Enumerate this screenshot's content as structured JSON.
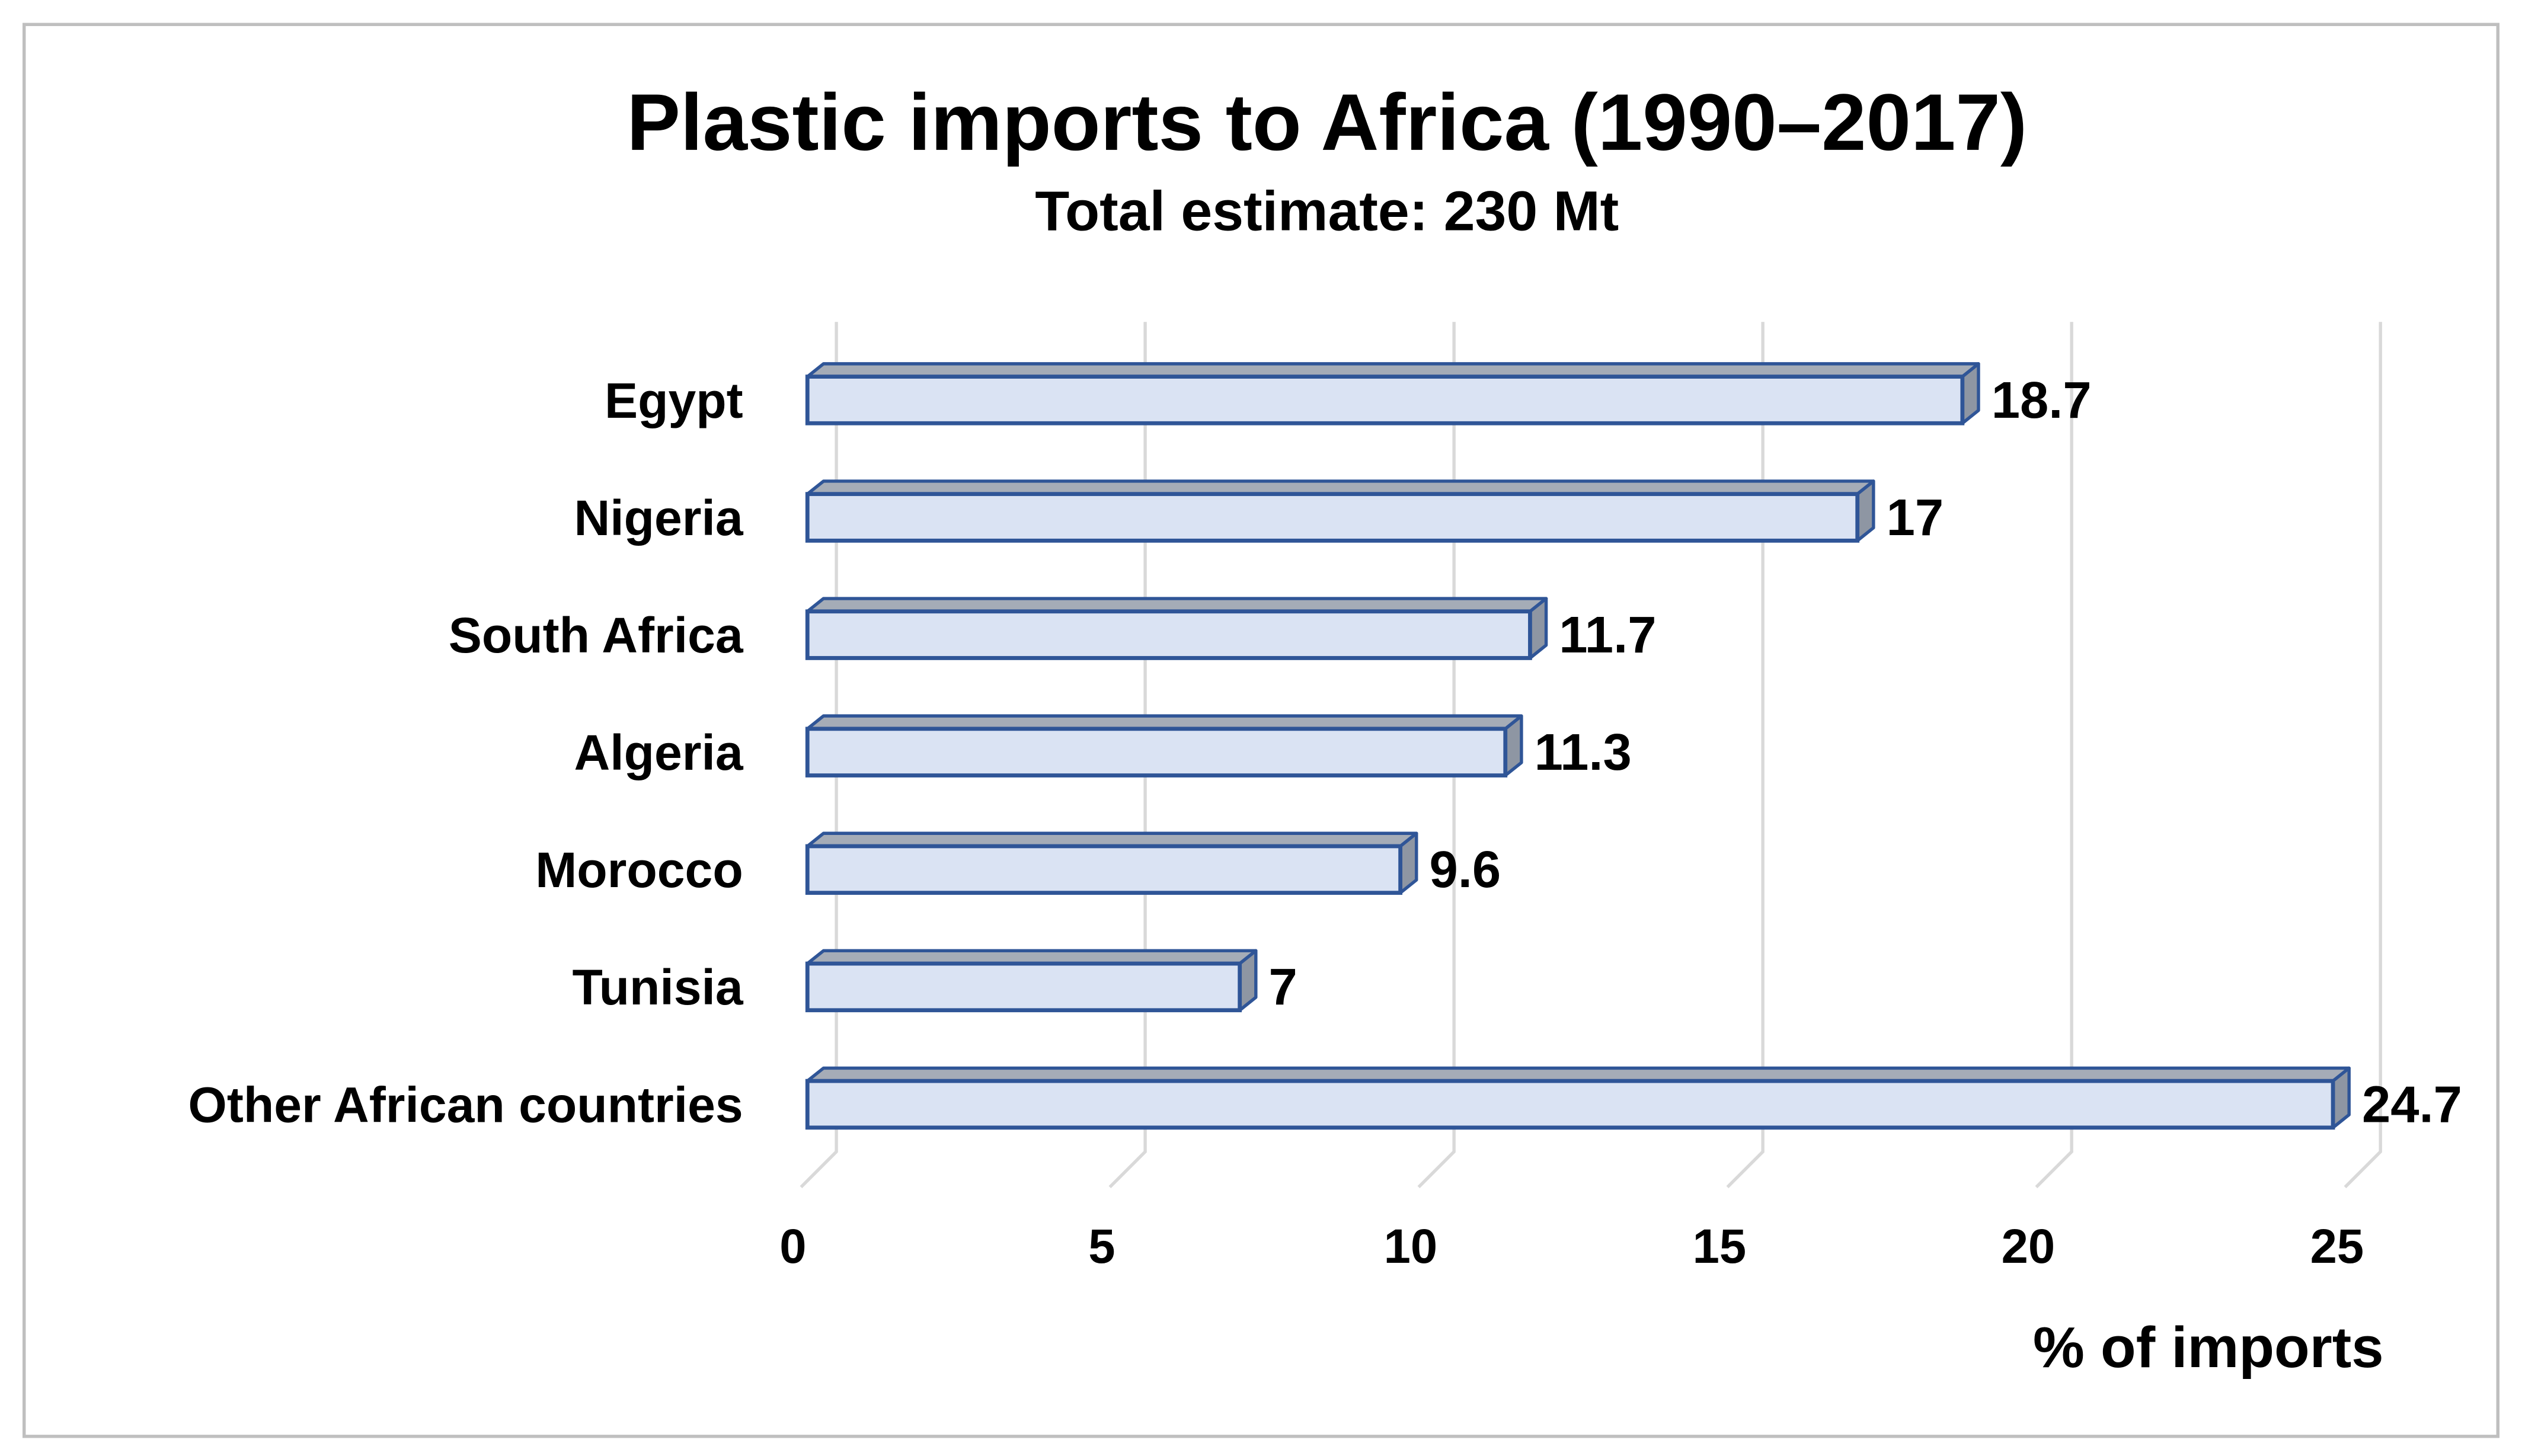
{
  "chart_data": {
    "type": "bar",
    "orientation": "horizontal",
    "style": "3d",
    "title": "Plastic imports to Africa (1990–2017)",
    "subtitle": "Total estimate: 230 Mt",
    "categories": [
      "Egypt",
      "Nigeria",
      "South Africa",
      "Algeria",
      "Morocco",
      "Tunisia",
      "Other African countries"
    ],
    "values": [
      18.7,
      17,
      11.7,
      11.3,
      9.6,
      7,
      24.7
    ],
    "value_labels": [
      "18.7",
      "17",
      "11.7",
      "11.3",
      "9.6",
      "7",
      "24.7"
    ],
    "xlabel": "% of imports",
    "ylabel": "",
    "xlim": [
      0,
      25
    ],
    "xticks": [
      "0",
      "5",
      "10",
      "15",
      "20",
      "25"
    ],
    "grid": true,
    "legend": "none",
    "colors": {
      "fill": "#DAE3F3",
      "border": "#2F5597",
      "top": "#A5ACB7",
      "side": "#8E96A3",
      "grid": "#D9D9D9",
      "frame": "#BFBFBF"
    }
  }
}
